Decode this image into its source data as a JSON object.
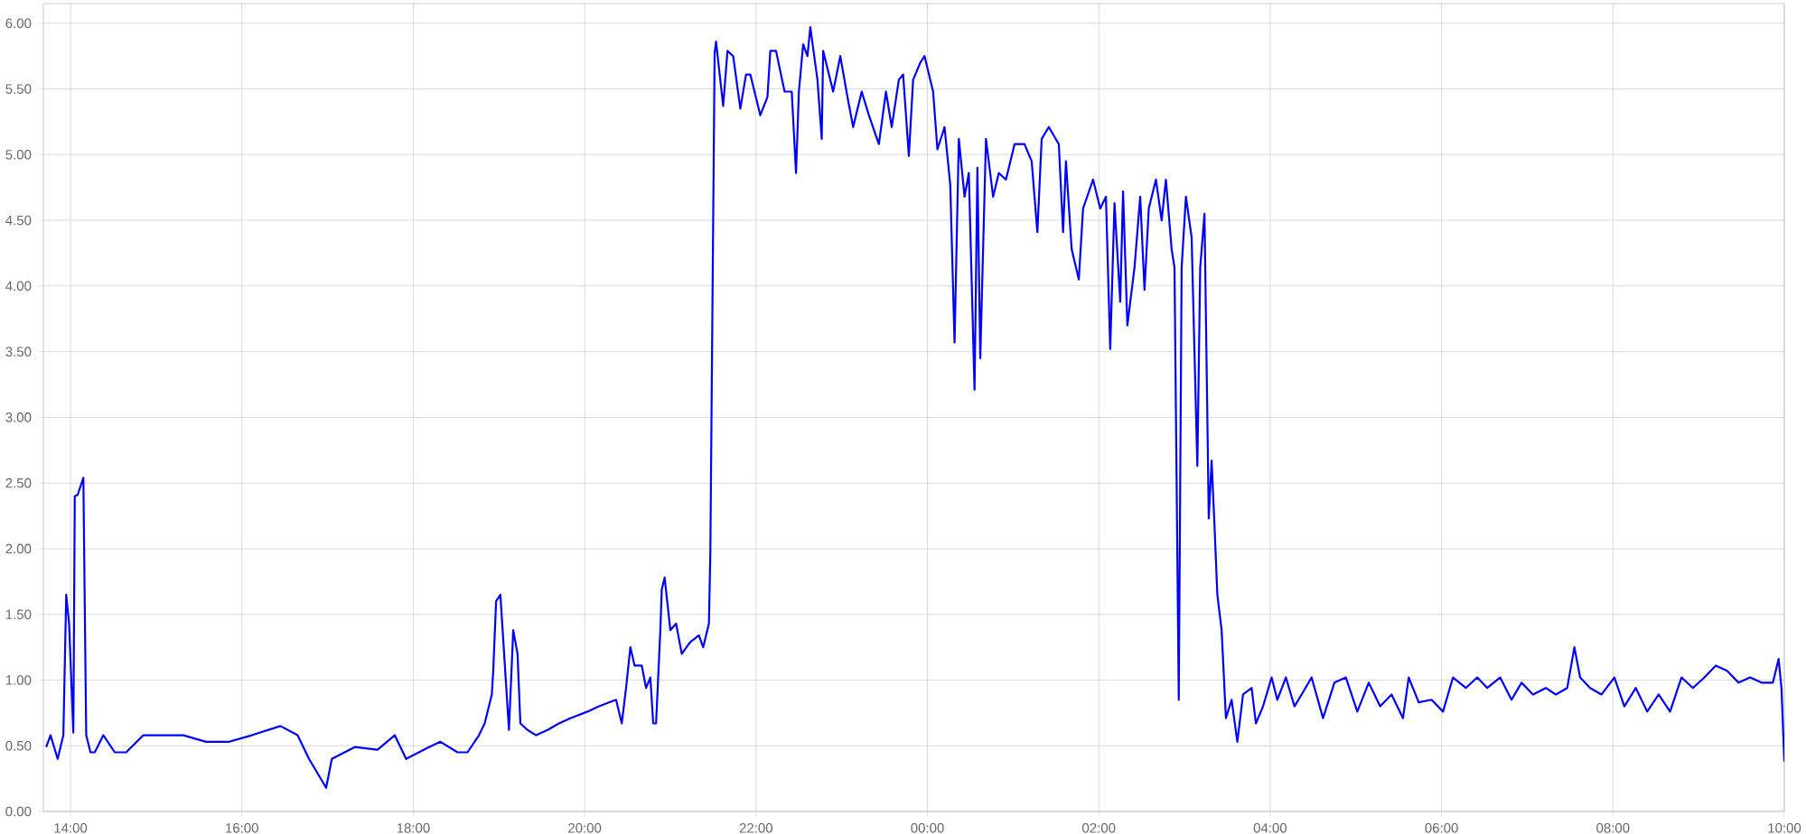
{
  "chart_data": {
    "type": "line",
    "color": "#0000ff",
    "grid": true,
    "marker": "none",
    "line_style": "solid",
    "xlim": [
      "2000-01-01T13:41",
      "2000-01-02T10:00"
    ],
    "xticks": [
      {
        "value": "2000-01-01T14:00",
        "label": "14:00"
      },
      {
        "value": "2000-01-01T16:00",
        "label": "16:00"
      },
      {
        "value": "2000-01-01T18:00",
        "label": "18:00"
      },
      {
        "value": "2000-01-01T20:00",
        "label": "20:00"
      },
      {
        "value": "2000-01-01T22:00",
        "label": "22:00"
      },
      {
        "value": "2000-01-02T00:00",
        "label": "00:00"
      },
      {
        "value": "2000-01-02T02:00",
        "label": "02:00"
      },
      {
        "value": "2000-01-02T04:00",
        "label": "04:00"
      },
      {
        "value": "2000-01-02T06:00",
        "label": "06:00"
      },
      {
        "value": "2000-01-02T08:00",
        "label": "08:00"
      },
      {
        "value": "2000-01-02T10:00",
        "label": "10:00"
      }
    ],
    "ylim": [
      0,
      6.15
    ],
    "yticks": [
      {
        "value": 0,
        "label": "0.00"
      },
      {
        "value": 0.5,
        "label": "0.50"
      },
      {
        "value": 1,
        "label": "1.00"
      },
      {
        "value": 1.5,
        "label": "1.50"
      },
      {
        "value": 2,
        "label": "2.00"
      },
      {
        "value": 2.5,
        "label": "2.50"
      },
      {
        "value": 3,
        "label": "3.00"
      },
      {
        "value": 3.5,
        "label": "3.50"
      },
      {
        "value": 4,
        "label": "4.00"
      },
      {
        "value": 4.5,
        "label": "4.50"
      },
      {
        "value": 5,
        "label": "5.00"
      },
      {
        "value": 5.5,
        "label": "5.50"
      },
      {
        "value": 6,
        "label": "6.00"
      }
    ],
    "x": [
      "2000-01-01T13:43",
      "2000-01-01T13:46",
      "2000-01-01T13:51",
      "2000-01-01T13:55",
      "2000-01-01T13:57",
      "2000-01-01T13:59",
      "2000-01-01T14:02",
      "2000-01-01T14:03",
      "2000-01-01T14:05",
      "2000-01-01T14:09",
      "2000-01-01T14:11",
      "2000-01-01T14:14",
      "2000-01-01T14:17",
      "2000-01-01T14:23",
      "2000-01-01T14:31",
      "2000-01-01T14:39",
      "2000-01-01T14:51",
      "2000-01-01T15:03",
      "2000-01-01T15:19",
      "2000-01-01T15:35",
      "2000-01-01T15:51",
      "2000-01-01T16:07",
      "2000-01-01T16:27",
      "2000-01-01T16:39",
      "2000-01-01T16:47",
      "2000-01-01T16:59",
      "2000-01-01T17:03",
      "2000-01-01T17:19",
      "2000-01-01T17:35",
      "2000-01-01T17:47",
      "2000-01-01T17:55",
      "2000-01-01T18:11",
      "2000-01-01T18:19",
      "2000-01-01T18:31",
      "2000-01-01T18:38",
      "2000-01-01T18:46",
      "2000-01-01T18:50",
      "2000-01-01T18:55",
      "2000-01-01T18:56",
      "2000-01-01T18:58",
      "2000-01-01T19:01",
      "2000-01-01T19:07",
      "2000-01-01T19:10",
      "2000-01-01T19:13",
      "2000-01-01T19:15",
      "2000-01-01T19:20",
      "2000-01-01T19:26",
      "2000-01-01T19:34",
      "2000-01-01T19:42",
      "2000-01-01T19:50",
      "2000-01-01T20:02",
      "2000-01-01T20:10",
      "2000-01-01T20:22",
      "2000-01-01T20:26",
      "2000-01-01T20:29",
      "2000-01-01T20:32",
      "2000-01-01T20:35",
      "2000-01-01T20:40",
      "2000-01-01T20:43",
      "2000-01-01T20:46",
      "2000-01-01T20:48",
      "2000-01-01T20:50",
      "2000-01-01T20:53",
      "2000-01-01T20:54",
      "2000-01-01T20:56",
      "2000-01-01T21:00",
      "2000-01-01T21:04",
      "2000-01-01T21:08",
      "2000-01-01T21:14",
      "2000-01-01T21:20",
      "2000-01-01T21:23",
      "2000-01-01T21:27",
      "2000-01-01T21:28",
      "2000-01-01T21:31",
      "2000-01-01T21:32",
      "2000-01-01T21:37",
      "2000-01-01T21:40",
      "2000-01-01T21:44",
      "2000-01-01T21:49",
      "2000-01-01T21:53",
      "2000-01-01T21:56",
      "2000-01-01T22:03",
      "2000-01-01T22:08",
      "2000-01-01T22:10",
      "2000-01-01T22:14",
      "2000-01-01T22:20",
      "2000-01-01T22:25",
      "2000-01-01T22:28",
      "2000-01-01T22:30",
      "2000-01-01T22:33",
      "2000-01-01T22:36",
      "2000-01-01T22:38",
      "2000-01-01T22:43",
      "2000-01-01T22:46",
      "2000-01-01T22:47",
      "2000-01-01T22:54",
      "2000-01-01T22:59",
      "2000-01-01T23:04",
      "2000-01-01T23:08",
      "2000-01-01T23:14",
      "2000-01-01T23:19",
      "2000-01-01T23:26",
      "2000-01-01T23:31",
      "2000-01-01T23:35",
      "2000-01-01T23:40",
      "2000-01-01T23:43",
      "2000-01-01T23:47",
      "2000-01-01T23:50",
      "2000-01-01T23:55",
      "2000-01-01T23:58",
      "2000-01-02T00:04",
      "2000-01-02T00:07",
      "2000-01-02T00:12",
      "2000-01-02T00:16",
      "2000-01-02T00:19",
      "2000-01-02T00:22",
      "2000-01-02T00:26",
      "2000-01-02T00:29",
      "2000-01-02T00:33",
      "2000-01-02T00:35",
      "2000-01-02T00:37",
      "2000-01-02T00:41",
      "2000-01-02T00:46",
      "2000-01-02T00:50",
      "2000-01-02T00:55",
      "2000-01-02T01:01",
      "2000-01-02T01:08",
      "2000-01-02T01:13",
      "2000-01-02T01:17",
      "2000-01-02T01:20",
      "2000-01-02T01:25",
      "2000-01-02T01:32",
      "2000-01-02T01:35",
      "2000-01-02T01:37",
      "2000-01-02T01:41",
      "2000-01-02T01:46",
      "2000-01-02T01:49",
      "2000-01-02T01:56",
      "2000-01-02T02:01",
      "2000-01-02T02:05",
      "2000-01-02T02:08",
      "2000-01-02T02:11",
      "2000-01-02T02:15",
      "2000-01-02T02:17",
      "2000-01-02T02:20",
      "2000-01-02T02:25",
      "2000-01-02T02:29",
      "2000-01-02T02:32",
      "2000-01-02T02:35",
      "2000-01-02T02:40",
      "2000-01-02T02:44",
      "2000-01-02T02:47",
      "2000-01-02T02:51",
      "2000-01-02T02:53",
      "2000-01-02T02:56",
      "2000-01-02T02:58",
      "2000-01-02T03:01",
      "2000-01-02T03:05",
      "2000-01-02T03:09",
      "2000-01-02T03:11",
      "2000-01-02T03:14",
      "2000-01-02T03:17",
      "2000-01-02T03:19",
      "2000-01-02T03:21",
      "2000-01-02T03:23",
      "2000-01-02T03:26",
      "2000-01-02T03:29",
      "2000-01-02T03:33",
      "2000-01-02T03:37",
      "2000-01-02T03:41",
      "2000-01-02T03:47",
      "2000-01-02T03:50",
      "2000-01-02T03:55",
      "2000-01-02T04:01",
      "2000-01-02T04:05",
      "2000-01-02T04:11",
      "2000-01-02T04:17",
      "2000-01-02T04:22",
      "2000-01-02T04:29",
      "2000-01-02T04:37",
      "2000-01-02T04:45",
      "2000-01-02T04:53",
      "2000-01-02T05:01",
      "2000-01-02T05:09",
      "2000-01-02T05:17",
      "2000-01-02T05:25",
      "2000-01-02T05:33",
      "2000-01-02T05:37",
      "2000-01-02T05:44",
      "2000-01-02T05:53",
      "2000-01-02T06:01",
      "2000-01-02T06:08",
      "2000-01-02T06:17",
      "2000-01-02T06:25",
      "2000-01-02T06:32",
      "2000-01-02T06:41",
      "2000-01-02T06:49",
      "2000-01-02T06:56",
      "2000-01-02T07:04",
      "2000-01-02T07:13",
      "2000-01-02T07:20",
      "2000-01-02T07:28",
      "2000-01-02T07:33",
      "2000-01-02T07:37",
      "2000-01-02T07:44",
      "2000-01-02T07:52",
      "2000-01-02T08:01",
      "2000-01-02T08:08",
      "2000-01-02T08:16",
      "2000-01-02T08:24",
      "2000-01-02T08:32",
      "2000-01-02T08:40",
      "2000-01-02T08:48",
      "2000-01-02T08:56",
      "2000-01-02T09:04",
      "2000-01-02T09:12",
      "2000-01-02T09:20",
      "2000-01-02T09:28",
      "2000-01-02T09:36",
      "2000-01-02T09:44",
      "2000-01-02T09:52",
      "2000-01-02T09:56",
      "2000-01-02T09:58",
      "2000-01-02T10:00"
    ],
    "values": [
      0.49,
      0.58,
      0.4,
      0.58,
      1.65,
      1.43,
      0.6,
      2.4,
      2.41,
      2.54,
      0.58,
      0.45,
      0.45,
      0.58,
      0.45,
      0.45,
      0.58,
      0.58,
      0.58,
      0.53,
      0.53,
      0.58,
      0.65,
      0.58,
      0.4,
      0.18,
      0.4,
      0.49,
      0.47,
      0.58,
      0.4,
      0.49,
      0.53,
      0.45,
      0.45,
      0.58,
      0.67,
      0.89,
      1.07,
      1.6,
      1.65,
      0.62,
      1.38,
      1.2,
      0.67,
      0.62,
      0.58,
      0.62,
      0.67,
      0.71,
      0.76,
      0.8,
      0.85,
      0.67,
      0.94,
      1.25,
      1.11,
      1.11,
      0.94,
      1.02,
      0.67,
      0.67,
      1.38,
      1.69,
      1.78,
      1.38,
      1.43,
      1.2,
      1.29,
      1.34,
      1.25,
      1.43,
      1.96,
      5.77,
      5.86,
      5.37,
      5.79,
      5.75,
      5.35,
      5.61,
      5.61,
      5.3,
      5.44,
      5.79,
      5.79,
      5.48,
      5.48,
      4.86,
      5.48,
      5.84,
      5.75,
      5.97,
      5.57,
      5.12,
      5.79,
      5.48,
      5.75,
      5.44,
      5.21,
      5.48,
      5.3,
      5.08,
      5.48,
      5.21,
      5.57,
      5.61,
      4.99,
      5.57,
      5.7,
      5.75,
      5.48,
      5.04,
      5.21,
      4.77,
      3.57,
      5.12,
      4.68,
      4.86,
      3.21,
      4.9,
      3.45,
      5.12,
      4.68,
      4.86,
      4.81,
      5.08,
      5.08,
      4.95,
      4.41,
      5.12,
      5.21,
      5.08,
      4.41,
      4.95,
      4.28,
      4.05,
      4.59,
      4.81,
      4.59,
      4.68,
      3.52,
      4.63,
      3.88,
      4.72,
      3.7,
      4.14,
      4.68,
      3.97,
      4.59,
      4.81,
      4.5,
      4.81,
      4.28,
      4.14,
      0.85,
      4.14,
      4.68,
      4.37,
      2.63,
      4.14,
      4.55,
      2.23,
      2.67,
      2.18,
      1.65,
      1.38,
      0.71,
      0.85,
      0.53,
      0.89,
      0.94,
      0.67,
      0.8,
      1.02,
      0.85,
      1.02,
      0.8,
      0.89,
      1.02,
      0.71,
      0.98,
      1.02,
      0.76,
      0.98,
      0.8,
      0.89,
      0.71,
      1.02,
      0.83,
      0.85,
      0.76,
      1.02,
      0.94,
      1.02,
      0.94,
      1.02,
      0.85,
      0.98,
      0.89,
      0.94,
      0.89,
      0.94,
      1.25,
      1.02,
      0.94,
      0.89,
      1.02,
      0.8,
      0.94,
      0.76,
      0.89,
      0.76,
      1.02,
      0.94,
      1.02,
      1.11,
      1.07,
      0.98,
      1.02,
      0.98,
      0.98,
      1.16,
      0.94,
      0.38
    ]
  }
}
